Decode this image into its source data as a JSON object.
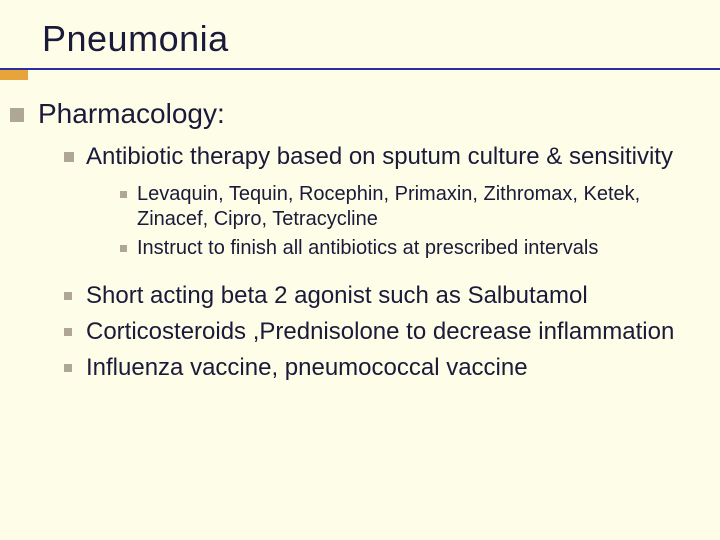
{
  "colors": {
    "background": "#fefde8",
    "text": "#1a1a3a",
    "header_line": "#2d2da0",
    "accent_bar": "#e6a43a",
    "bullet": "#afa796"
  },
  "title": "Pneumonia",
  "l1": "Pharmacology:",
  "l2_a": "Antibiotic therapy based on sputum culture & sensitivity",
  "l3_a": "Levaquin, Tequin, Rocephin, Primaxin, Zithromax, Ketek, Zinacef, Cipro, Tetracycline",
  "l3_b": "Instruct to finish all antibiotics at prescribed intervals",
  "l2b_a": "Short acting beta 2 agonist such as Salbutamol",
  "l2b_b": "Corticosteroids ,Prednisolone to decrease inflammation",
  "l2b_c": "Influenza vaccine, pneumococcal vaccine"
}
